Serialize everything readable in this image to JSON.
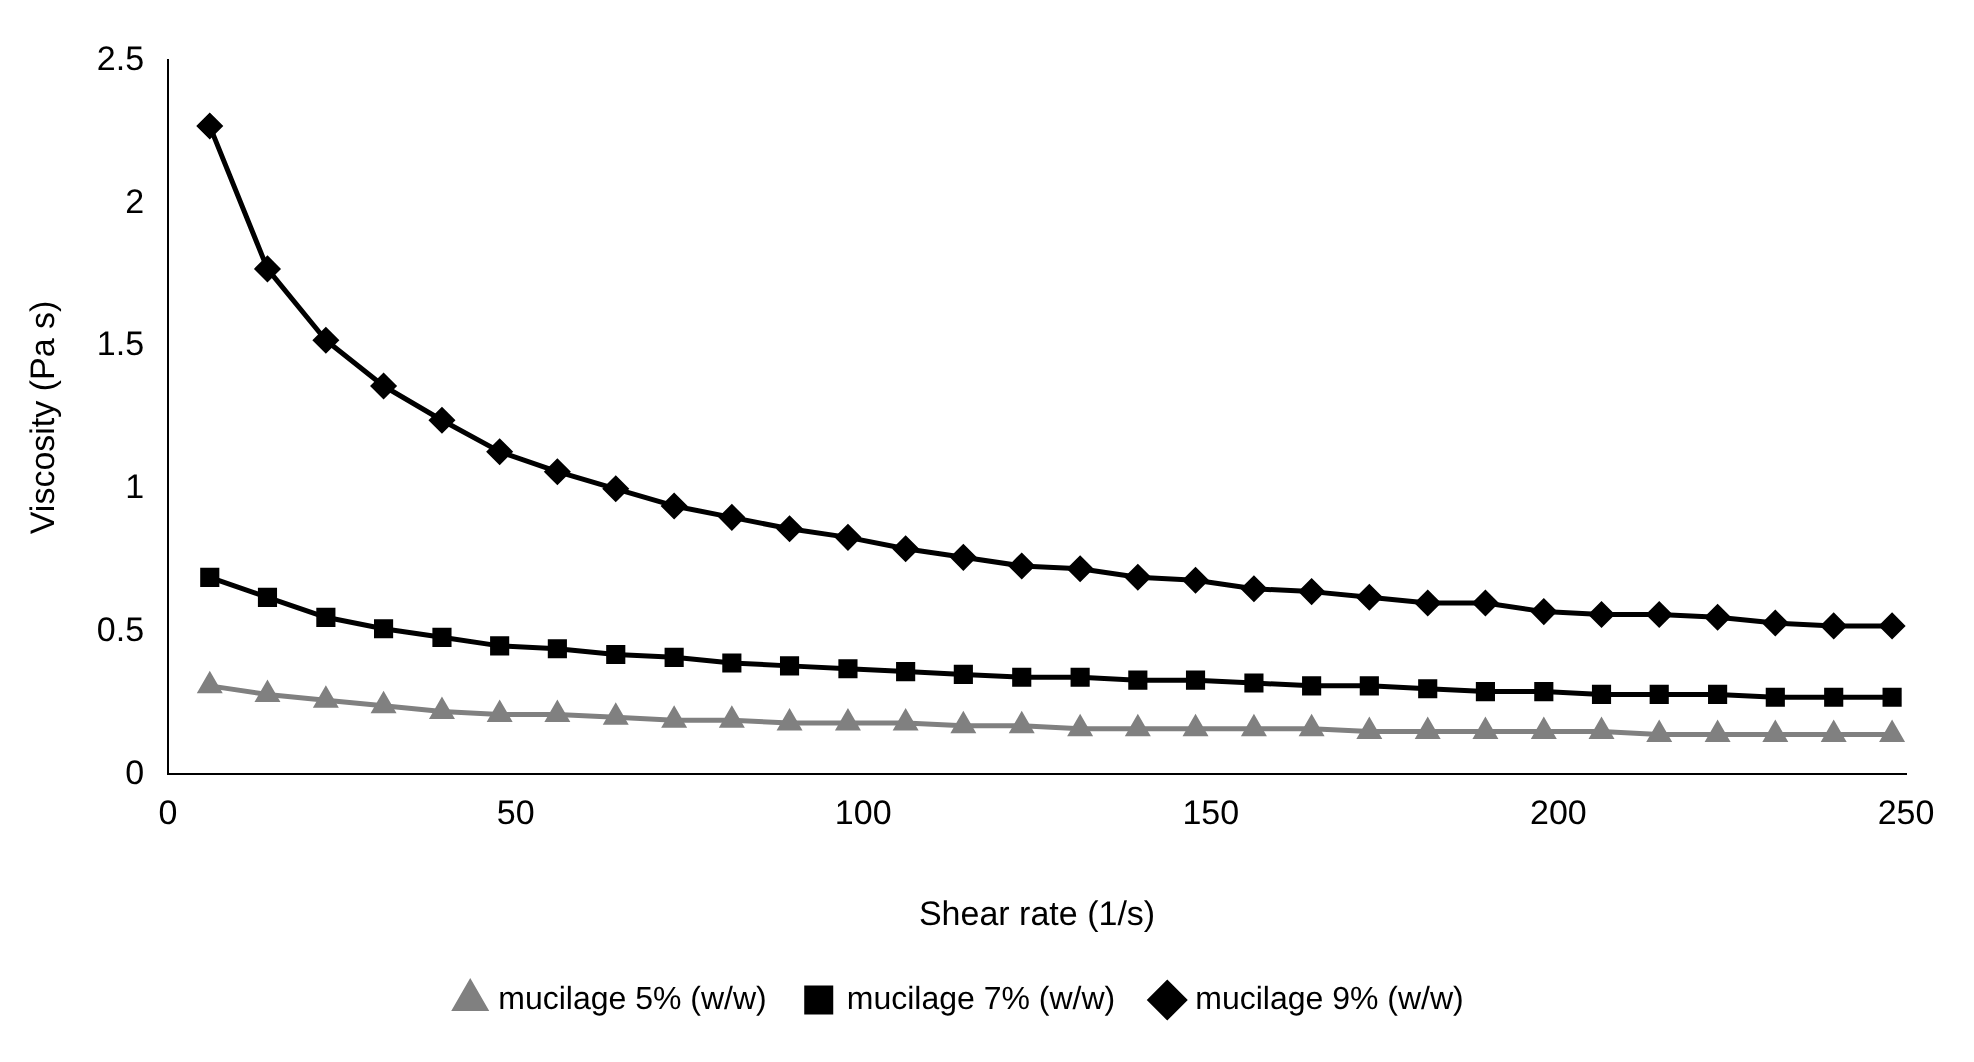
{
  "chart_data": {
    "type": "line",
    "xlabel": "Shear rate (1/s)",
    "ylabel": "Viscosity (Pa s)",
    "x": [
      6,
      14.3,
      22.7,
      31,
      39.4,
      47.7,
      56,
      64.4,
      72.8,
      81.1,
      89.4,
      97.8,
      106.1,
      114.4,
      122.8,
      131.2,
      139.5,
      147.8,
      156.2,
      164.5,
      172.8,
      181.2,
      189.5,
      197.9,
      206.2,
      214.5,
      222.9,
      231.2,
      239.6,
      248
    ],
    "series": [
      {
        "name": "mucilage 5% (w/w)",
        "color": "#808080",
        "marker": "triangle",
        "values": [
          0.31,
          0.28,
          0.26,
          0.24,
          0.22,
          0.21,
          0.21,
          0.2,
          0.19,
          0.19,
          0.18,
          0.18,
          0.18,
          0.17,
          0.17,
          0.16,
          0.16,
          0.16,
          0.16,
          0.16,
          0.15,
          0.15,
          0.15,
          0.15,
          0.15,
          0.14,
          0.14,
          0.14,
          0.14,
          0.14
        ]
      },
      {
        "name": "mucilage 7% (w/w)",
        "color": "#000000",
        "marker": "square",
        "values": [
          0.69,
          0.62,
          0.55,
          0.51,
          0.48,
          0.45,
          0.44,
          0.42,
          0.41,
          0.39,
          0.38,
          0.37,
          0.36,
          0.35,
          0.34,
          0.34,
          0.33,
          0.33,
          0.32,
          0.31,
          0.31,
          0.3,
          0.29,
          0.29,
          0.28,
          0.28,
          0.28,
          0.27,
          0.27,
          0.27
        ]
      },
      {
        "name": "mucilage 9% (w/w)",
        "color": "#000000",
        "marker": "diamond",
        "values": [
          2.27,
          1.77,
          1.52,
          1.36,
          1.24,
          1.13,
          1.06,
          1.0,
          0.94,
          0.9,
          0.86,
          0.83,
          0.79,
          0.76,
          0.73,
          0.72,
          0.69,
          0.68,
          0.65,
          0.64,
          0.62,
          0.6,
          0.6,
          0.57,
          0.56,
          0.56,
          0.55,
          0.53,
          0.52,
          0.52
        ]
      }
    ],
    "xlim": [
      0,
      250
    ],
    "xticks": [
      0,
      50,
      100,
      150,
      200,
      250
    ],
    "ylim": [
      0,
      2.5
    ],
    "yticks": [
      0,
      0.5,
      1,
      1.5,
      2,
      2.5
    ],
    "grid": false,
    "legend": "bottom",
    "line_style": "solid"
  }
}
